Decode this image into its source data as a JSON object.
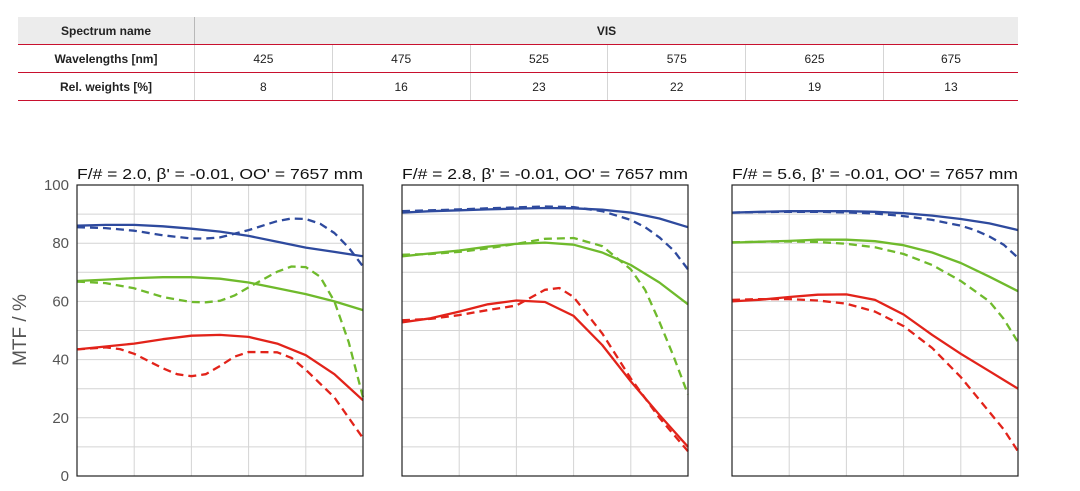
{
  "table": {
    "header": {
      "label": "Spectrum name",
      "spectrum": "VIS"
    },
    "wavelengths": {
      "label": "Wavelengths [nm]",
      "values": [
        "425",
        "475",
        "525",
        "575",
        "625",
        "675"
      ]
    },
    "weights": {
      "label": "Rel. weights [%]",
      "values": [
        "8",
        "16",
        "23",
        "22",
        "19",
        "13"
      ]
    }
  },
  "chart_data": {
    "type": "line",
    "ylabel": "MTF / %",
    "ylim": [
      0,
      100
    ],
    "yticks": [
      "100",
      "80",
      "60",
      "40",
      "20",
      "0"
    ],
    "grid": true,
    "colors": {
      "blue": "#2e4a9e",
      "green": "#6fba2c",
      "red": "#e2231a"
    },
    "panels": [
      {
        "title": "F/# = 2.0, β' = -0.01, OO' = 7657 mm",
        "series": [
          {
            "color": "blue",
            "style": "solid",
            "x": [
              0,
              0.1,
              0.2,
              0.3,
              0.4,
              0.5,
              0.6,
              0.7,
              0.8,
              0.9,
              1.0
            ],
            "y": [
              86,
              86.3,
              86.3,
              85.8,
              85,
              84,
              82.5,
              80.5,
              78.5,
              77,
              75.5
            ]
          },
          {
            "color": "blue",
            "style": "dashed",
            "x": [
              0,
              0.1,
              0.2,
              0.3,
              0.4,
              0.45,
              0.5,
              0.6,
              0.7,
              0.75,
              0.8,
              0.85,
              0.9,
              0.95,
              1.0
            ],
            "y": [
              85.5,
              85.2,
              84.3,
              82.7,
              81.6,
              81.6,
              82,
              84.5,
              87.6,
              88.5,
              88.3,
              86.7,
              83.5,
              78.5,
              72
            ]
          },
          {
            "color": "green",
            "style": "solid",
            "x": [
              0,
              0.1,
              0.2,
              0.3,
              0.4,
              0.5,
              0.6,
              0.7,
              0.8,
              0.9,
              1.0
            ],
            "y": [
              67,
              67.5,
              68,
              68.3,
              68.3,
              67.8,
              66.5,
              64.5,
              62.5,
              60,
              57
            ]
          },
          {
            "color": "green",
            "style": "dashed",
            "x": [
              0,
              0.1,
              0.2,
              0.3,
              0.4,
              0.45,
              0.5,
              0.55,
              0.6,
              0.7,
              0.75,
              0.8,
              0.85,
              0.9,
              0.95,
              1.0
            ],
            "y": [
              66.8,
              66.3,
              64.5,
              61.5,
              59.8,
              59.7,
              60.2,
              62,
              64.8,
              70.2,
              72,
              71.8,
              68.5,
              60,
              46,
              27
            ]
          },
          {
            "color": "red",
            "style": "solid",
            "x": [
              0,
              0.1,
              0.2,
              0.3,
              0.4,
              0.5,
              0.6,
              0.7,
              0.8,
              0.9,
              1.0
            ],
            "y": [
              43.5,
              44.5,
              45.5,
              47,
              48.2,
              48.5,
              47.8,
              45.5,
              41.5,
              35,
              26
            ]
          },
          {
            "color": "red",
            "style": "dashed",
            "x": [
              0,
              0.1,
              0.15,
              0.2,
              0.3,
              0.35,
              0.4,
              0.45,
              0.5,
              0.55,
              0.6,
              0.7,
              0.75,
              0.8,
              0.9,
              1.0
            ],
            "y": [
              43.5,
              44.2,
              43.6,
              42,
              37,
              35,
              34.3,
              35,
              37.8,
              41,
              42.6,
              42.5,
              40.6,
              36.5,
              27,
              13
            ]
          }
        ]
      },
      {
        "title": "F/# = 2.8, β' = -0.01, OO' = 7657 mm",
        "series": [
          {
            "color": "blue",
            "style": "solid",
            "x": [
              0,
              0.1,
              0.2,
              0.3,
              0.4,
              0.5,
              0.6,
              0.7,
              0.8,
              0.9,
              1.0
            ],
            "y": [
              90.5,
              91,
              91.3,
              91.6,
              91.9,
              92.1,
              92,
              91.5,
              90.5,
              88.5,
              85.5
            ]
          },
          {
            "color": "blue",
            "style": "dashed",
            "x": [
              0,
              0.1,
              0.2,
              0.3,
              0.4,
              0.5,
              0.6,
              0.7,
              0.8,
              0.85,
              0.9,
              0.95,
              1.0
            ],
            "y": [
              91,
              91.3,
              91.6,
              92,
              92.3,
              92.6,
              92.4,
              91,
              88,
              85.5,
              82,
              77.5,
              71
            ]
          },
          {
            "color": "green",
            "style": "solid",
            "x": [
              0,
              0.1,
              0.2,
              0.3,
              0.4,
              0.5,
              0.6,
              0.7,
              0.8,
              0.9,
              1.0
            ],
            "y": [
              75.5,
              76.5,
              77.5,
              78.8,
              79.8,
              80.2,
              79.5,
              76.8,
              72.5,
              66.5,
              59
            ]
          },
          {
            "color": "green",
            "style": "dashed",
            "x": [
              0,
              0.1,
              0.2,
              0.3,
              0.4,
              0.5,
              0.6,
              0.7,
              0.8,
              0.85,
              0.9,
              0.95,
              1.0
            ],
            "y": [
              76,
              76.3,
              77,
              78.2,
              79.8,
              81.5,
              81.8,
              79,
              71,
              64,
              53,
              41,
              28
            ]
          },
          {
            "color": "red",
            "style": "solid",
            "x": [
              0,
              0.1,
              0.2,
              0.3,
              0.4,
              0.5,
              0.6,
              0.7,
              0.8,
              0.9,
              1.0
            ],
            "y": [
              52.8,
              54.2,
              56.5,
              59,
              60.3,
              59.8,
              55,
              45,
              32.5,
              21,
              10
            ]
          },
          {
            "color": "red",
            "style": "dashed",
            "x": [
              0,
              0.1,
              0.2,
              0.3,
              0.4,
              0.5,
              0.55,
              0.6,
              0.7,
              0.8,
              0.9,
              1.0
            ],
            "y": [
              53.5,
              54,
              55.3,
              57,
              58.6,
              64,
              64.6,
              61.5,
              49,
              33.5,
              20,
              8.5
            ]
          }
        ]
      },
      {
        "title": "F/# = 5.6, β' = -0.01, OO' = 7657 mm",
        "series": [
          {
            "color": "blue",
            "style": "solid",
            "x": [
              0,
              0.1,
              0.2,
              0.3,
              0.4,
              0.5,
              0.6,
              0.7,
              0.8,
              0.9,
              1.0
            ],
            "y": [
              90.5,
              90.8,
              91,
              91,
              91,
              90.8,
              90.3,
              89.5,
              88.3,
              86.8,
              84.5
            ]
          },
          {
            "color": "blue",
            "style": "dashed",
            "x": [
              0,
              0.1,
              0.2,
              0.3,
              0.4,
              0.5,
              0.6,
              0.7,
              0.8,
              0.85,
              0.9,
              0.95,
              1.0
            ],
            "y": [
              90.5,
              90.7,
              90.8,
              90.8,
              90.6,
              90.2,
              89.3,
              88,
              86,
              84.5,
              82.3,
              79.5,
              75
            ]
          },
          {
            "color": "green",
            "style": "solid",
            "x": [
              0,
              0.1,
              0.2,
              0.3,
              0.4,
              0.5,
              0.6,
              0.7,
              0.8,
              0.9,
              1.0
            ],
            "y": [
              80.2,
              80.5,
              80.8,
              81.2,
              81.2,
              80.7,
              79.3,
              76.8,
              73.2,
              68.5,
              63.5
            ]
          },
          {
            "color": "green",
            "style": "dashed",
            "x": [
              0,
              0.1,
              0.2,
              0.3,
              0.4,
              0.5,
              0.6,
              0.7,
              0.8,
              0.9,
              0.95,
              1.0
            ],
            "y": [
              80.3,
              80.5,
              80.6,
              80.4,
              79.8,
              78.6,
              76.3,
              72.5,
              67,
              60,
              54,
              46
            ]
          },
          {
            "color": "red",
            "style": "solid",
            "x": [
              0,
              0.1,
              0.2,
              0.3,
              0.4,
              0.5,
              0.6,
              0.7,
              0.8,
              0.9,
              1.0
            ],
            "y": [
              60,
              60.6,
              61.5,
              62.3,
              62.4,
              60.5,
              55.5,
              48.5,
              42,
              36,
              30
            ]
          },
          {
            "color": "red",
            "style": "dashed",
            "x": [
              0,
              0.1,
              0.2,
              0.3,
              0.4,
              0.5,
              0.6,
              0.7,
              0.8,
              0.9,
              0.95,
              1.0
            ],
            "y": [
              60.5,
              60.8,
              60.8,
              60.3,
              59.2,
              56.5,
              51.5,
              44,
              34,
              22,
              16,
              8.5
            ]
          }
        ]
      }
    ]
  }
}
